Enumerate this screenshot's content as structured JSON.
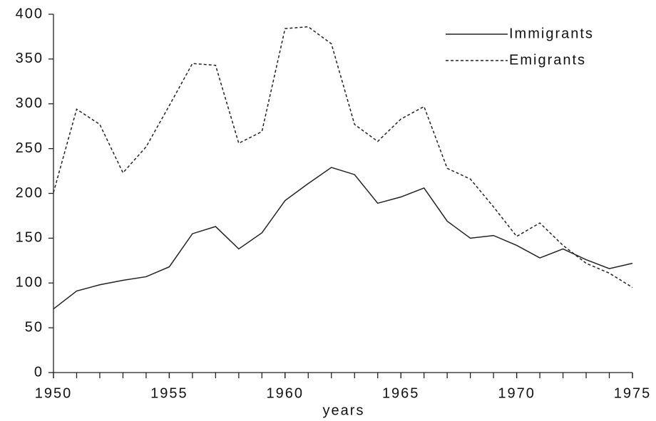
{
  "chart_data": {
    "type": "line",
    "x_label": "years",
    "x": [
      1950,
      1951,
      1952,
      1953,
      1954,
      1955,
      1956,
      1957,
      1958,
      1959,
      1960,
      1961,
      1962,
      1963,
      1964,
      1965,
      1966,
      1967,
      1968,
      1969,
      1970,
      1971,
      1972,
      1973,
      1974,
      1975
    ],
    "series": [
      {
        "name": "Immigrants",
        "color": "#222222",
        "style": "solid",
        "values": [
          71,
          91,
          98,
          103,
          107,
          118,
          155,
          163,
          138,
          156,
          192,
          211,
          229,
          221,
          189,
          196,
          206,
          169,
          150,
          153,
          142,
          128,
          138,
          126,
          116,
          122
        ]
      },
      {
        "name": "Emigrants",
        "color": "#222222",
        "style": "dotted",
        "values": [
          201,
          294,
          277,
          223,
          252,
          298,
          345,
          343,
          256,
          269,
          384,
          386,
          367,
          277,
          258,
          283,
          297,
          228,
          216,
          185,
          152,
          167,
          142,
          122,
          111,
          95
        ]
      }
    ],
    "xlim": [
      1950,
      1975
    ],
    "xticks": [
      1950,
      1955,
      1960,
      1965,
      1970,
      1975
    ],
    "ylim": [
      0,
      400
    ],
    "yticks": [
      0,
      50,
      100,
      150,
      200,
      250,
      300,
      350,
      400
    ],
    "grid": false,
    "legend": "upper right"
  }
}
